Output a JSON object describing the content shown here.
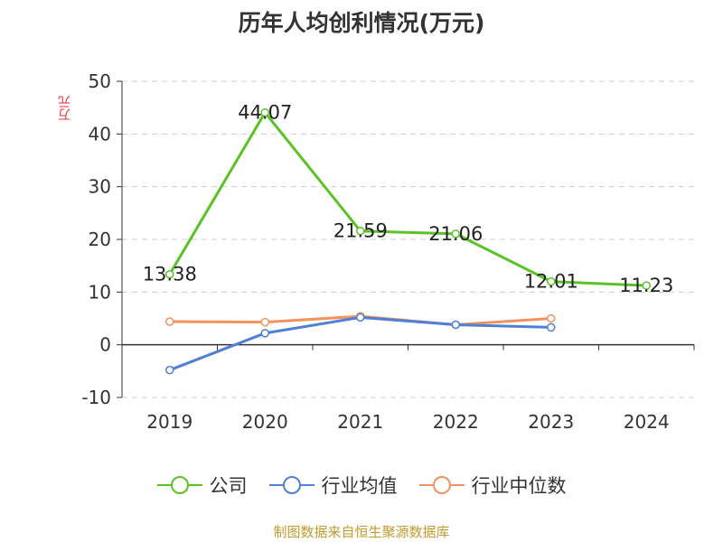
{
  "title": "历年人均创利情况(万元)",
  "source": "制图数据来自恒生聚源数据库",
  "chart_data": {
    "type": "line",
    "title": "历年人均创利情况(万元)",
    "ylabel": "万元",
    "ylim": [
      -10,
      50
    ],
    "yticks": [
      -10,
      0,
      10,
      20,
      30,
      40,
      50
    ],
    "categories": [
      "2019",
      "2020",
      "2021",
      "2022",
      "2023",
      "2024"
    ],
    "grid": true,
    "legend_position": "bottom",
    "series": [
      {
        "name": "公司",
        "color": "#5bc226",
        "values": [
          13.38,
          44.07,
          21.59,
          21.06,
          12.01,
          11.23
        ],
        "labels": [
          "13.38",
          "44.07",
          "21.59",
          "21.06",
          "12.01",
          "11.23"
        ]
      },
      {
        "name": "行业均值",
        "color": "#4f7fd6",
        "values": [
          -4.8,
          2.2,
          5.2,
          3.8,
          3.3,
          null
        ]
      },
      {
        "name": "行业中位数",
        "color": "#f2925e",
        "values": [
          4.4,
          4.3,
          5.4,
          3.8,
          5.0,
          null
        ]
      }
    ]
  }
}
